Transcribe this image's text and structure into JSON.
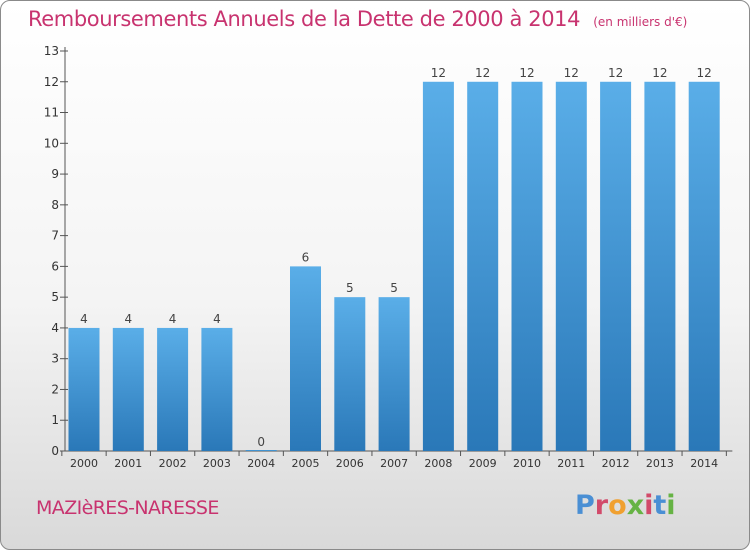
{
  "header": {
    "title": "Remboursements Annuels de la Dette de 2000 à 2014",
    "unit": "(en milliers d'€)"
  },
  "footer": {
    "commune": "MAZIèRES-NARESSE",
    "logo": "Proxiti",
    "logo_colors": [
      "#4a8fd4",
      "#d24a6a",
      "#f0a030",
      "#66b344",
      "#d24a6a",
      "#4a8fd4",
      "#66b344"
    ]
  },
  "chart_data": {
    "type": "bar",
    "title": "Remboursements Annuels de la Dette de 2000 à 2014",
    "xlabel": "",
    "ylabel": "",
    "categories": [
      "2000",
      "2001",
      "2002",
      "2003",
      "2004",
      "2005",
      "2006",
      "2007",
      "2008",
      "2009",
      "2010",
      "2011",
      "2012",
      "2013",
      "2014"
    ],
    "values": [
      4,
      4,
      4,
      4,
      0,
      6,
      5,
      5,
      12,
      12,
      12,
      12,
      12,
      12,
      12
    ],
    "data_labels": [
      "4",
      "4",
      "4",
      "4",
      "0",
      "6",
      "5",
      "5",
      "12",
      "12",
      "12",
      "12",
      "12",
      "12",
      "12"
    ],
    "y_ticks": [
      "0",
      "1",
      "2",
      "3",
      "4",
      "5",
      "6",
      "7",
      "8",
      "9",
      "10",
      "11",
      "12",
      "13"
    ],
    "ylim": [
      0,
      13
    ],
    "grid": false,
    "bar_color_top": "#5aaee8",
    "bar_color_bottom": "#2a78b8"
  }
}
